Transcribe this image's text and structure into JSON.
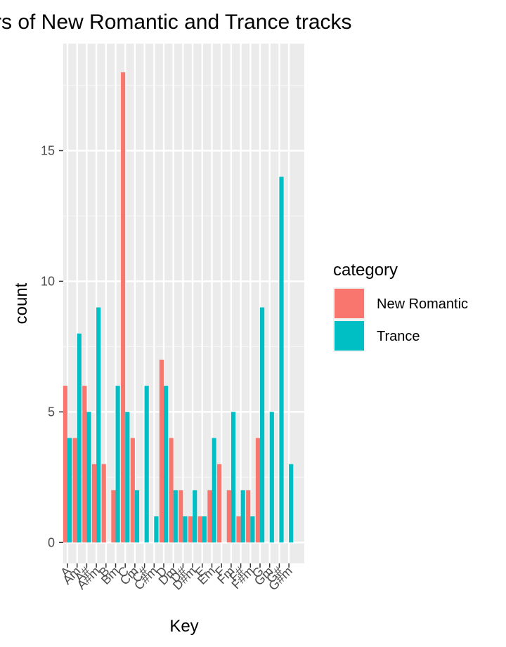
{
  "chart_data": {
    "type": "bar",
    "title": "rs of New Romantic and Trance tracks",
    "xlabel": "Key",
    "ylabel": "count",
    "ylim": [
      -0.8,
      19.1
    ],
    "y_ticks": [
      0,
      5,
      10,
      15
    ],
    "categories": [
      "A",
      "Am",
      "A#",
      "A#m",
      "B",
      "Bm",
      "C",
      "Cm",
      "C#",
      "C#m",
      "D",
      "Dm",
      "D#",
      "D#m",
      "E",
      "Em",
      "F",
      "Fm",
      "F#",
      "F#m",
      "G",
      "Gm",
      "G#",
      "G#m"
    ],
    "legend_title": "category",
    "legend_position": "right",
    "grid": true,
    "series": [
      {
        "name": "New Romantic",
        "color": "#F8766D",
        "values": [
          6,
          4,
          6,
          3,
          3,
          2,
          18,
          4,
          0,
          0,
          7,
          4,
          2,
          1,
          1,
          2,
          3,
          2,
          1,
          2,
          4,
          0,
          0,
          0
        ]
      },
      {
        "name": "Trance",
        "color": "#00BFC4",
        "values": [
          4,
          8,
          5,
          9,
          0,
          6,
          5,
          2,
          6,
          1,
          6,
          2,
          1,
          2,
          1,
          4,
          0,
          5,
          2,
          1,
          9,
          5,
          14,
          3
        ]
      }
    ]
  }
}
